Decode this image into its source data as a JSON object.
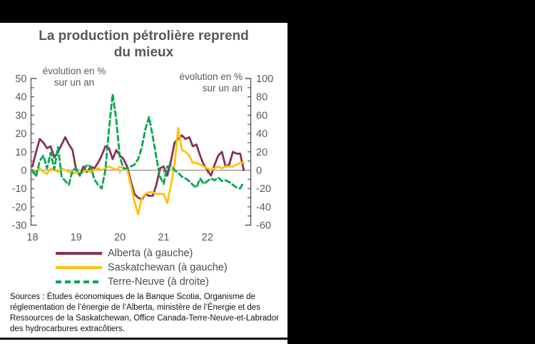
{
  "page": {
    "background": "#000000",
    "card_background": "#ffffff"
  },
  "title": {
    "text": "La production pétrolière reprend\ndu mieux",
    "color": "#595959"
  },
  "annotations": {
    "left": "évolution en %\nsur un an",
    "right": "évolution en %\nsur un an"
  },
  "sources": {
    "text": "Sources : Études économiques de la Banque Scotia, Organisme de\nréglementation de l’énergie de l’Alberta, ministère de l’Énergie et des\nRessources de la Saskatchewan, Office Canada-Terre-Neuve-et-Labrador\ndes hydrocarbures extracôtiers."
  },
  "chart_data": {
    "type": "line",
    "title": "La production pétrolière reprend du mieux",
    "grid": false,
    "zero_line": true,
    "legend_position": "bottom",
    "x_axis": {
      "unit": "month",
      "start": "2018-01",
      "end": "2022-11",
      "tick_labels": [
        "18",
        "19",
        "20",
        "21",
        "22"
      ],
      "tick_positions_months": [
        0,
        12,
        24,
        36,
        48
      ]
    },
    "left_axis": {
      "label": "évolution en % sur un an",
      "min": -30,
      "max": 50,
      "tick_labels": [
        "50",
        "40",
        "30",
        "20",
        "10",
        "0",
        "-10",
        "-20",
        "-30"
      ],
      "minor_tick_step": 5
    },
    "right_axis": {
      "label": "évolution en % sur un an",
      "min": -60,
      "max": 100,
      "tick_labels": [
        "100",
        "80",
        "60",
        "40",
        "20",
        "0",
        "-20",
        "-40",
        "-60"
      ],
      "minor_tick_step": 10
    },
    "axis_color": "#595959",
    "zero_line_color": "#8c8c8c",
    "series": [
      {
        "name": "Alberta (à gauche)",
        "axis": "left",
        "color": "#873155",
        "style": "solid",
        "values": [
          2,
          10,
          17,
          15,
          12,
          13,
          7,
          10,
          14,
          18,
          14,
          11,
          0,
          -3,
          2,
          -1,
          2,
          1,
          4,
          8,
          13,
          12,
          6,
          11,
          8,
          6,
          2,
          -6,
          -13,
          -15,
          -16,
          -13,
          -14,
          -14,
          -8,
          1,
          2,
          -3,
          5,
          15,
          17,
          19,
          17,
          18,
          13,
          14,
          8,
          3,
          0,
          -3,
          3,
          8,
          10,
          2,
          3,
          10,
          9,
          9,
          0
        ]
      },
      {
        "name": "Saskatchewan (à gauche)",
        "axis": "left",
        "color": "#ffc20e",
        "style": "solid",
        "values": [
          0,
          -1,
          1,
          -1,
          -2,
          1,
          0,
          -1,
          1,
          0,
          -1,
          -2,
          -1,
          -2,
          -1,
          0,
          -1,
          0,
          1,
          0,
          1,
          2,
          1,
          0,
          2,
          1,
          0,
          -8,
          -17,
          -24,
          -15,
          -13,
          -12,
          -12,
          -13,
          -13,
          -13,
          -18,
          -8,
          3,
          23,
          11,
          10,
          8,
          4,
          4,
          3,
          2,
          1,
          0,
          1,
          2,
          1,
          2,
          2,
          2,
          3,
          4,
          4
        ]
      },
      {
        "name": "Terre-Neuve (à droite)",
        "axis": "right",
        "color": "#00a651",
        "style": "dashed",
        "values": [
          0,
          -7,
          10,
          16,
          2,
          19,
          1,
          25,
          -7,
          -12,
          -16,
          0,
          2,
          -5,
          0,
          6,
          4,
          -10,
          -16,
          -20,
          0,
          45,
          83,
          55,
          14,
          2,
          2,
          4,
          6,
          12,
          25,
          45,
          58,
          37,
          14,
          -7,
          -15,
          4,
          5,
          0,
          -3,
          -7,
          -9,
          -12,
          -16,
          -19,
          -9,
          -15,
          -12,
          -9,
          -11,
          -8,
          -12,
          -11,
          -13,
          -16,
          -19,
          -20,
          -13
        ]
      }
    ]
  }
}
